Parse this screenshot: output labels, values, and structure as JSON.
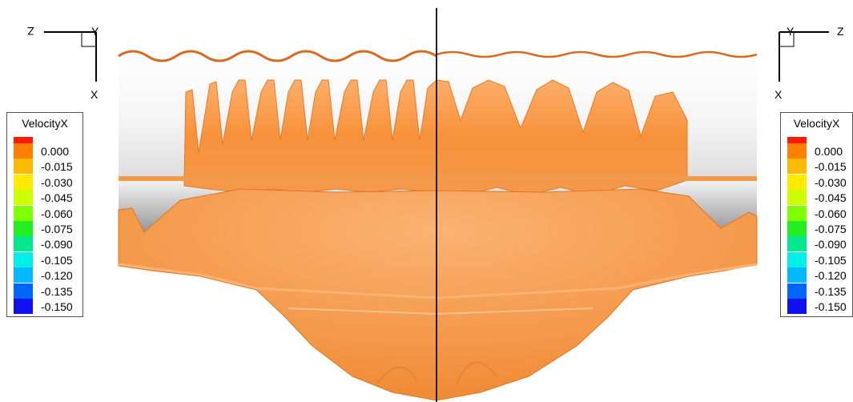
{
  "views": {
    "left": {
      "axis_h": "Z",
      "axis_top": "Y",
      "axis_down": "X"
    },
    "right": {
      "axis_top": "Y",
      "axis_h": "Z",
      "axis_down": "X"
    }
  },
  "legend": {
    "title": "VelocityX",
    "levels": [
      {
        "label": "0.000",
        "color": "#ff7f00"
      },
      {
        "label": "-0.015",
        "color": "#ffbb00"
      },
      {
        "label": "-0.030",
        "color": "#ffea00"
      },
      {
        "label": "-0.045",
        "color": "#ccff00"
      },
      {
        "label": "-0.060",
        "color": "#7fff00"
      },
      {
        "label": "-0.075",
        "color": "#22ee22"
      },
      {
        "label": "-0.090",
        "color": "#00e890"
      },
      {
        "label": "-0.105",
        "color": "#00f0e8"
      },
      {
        "label": "-0.120",
        "color": "#00b8ff"
      },
      {
        "label": "-0.135",
        "color": "#0066ff"
      },
      {
        "label": "-0.150",
        "color": "#1010f0"
      }
    ],
    "top_color": "#ff1a00"
  },
  "colors": {
    "surface": "#f7913a",
    "surface_light": "#fbae6a",
    "surface_dark": "#d9691f",
    "divider": "#222222"
  }
}
